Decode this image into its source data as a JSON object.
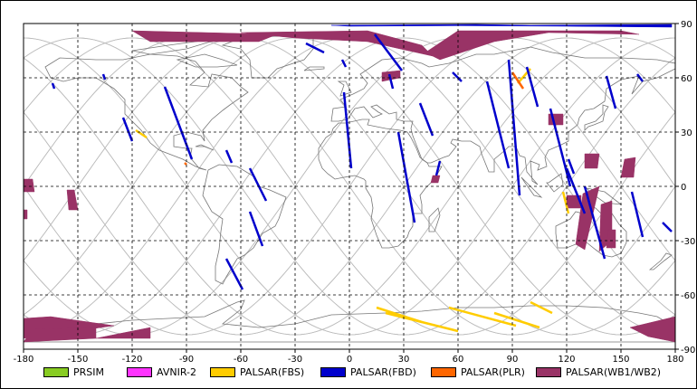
{
  "chart_data": {
    "type": "map",
    "projection": "equirectangular",
    "xlim": [
      -180,
      180
    ],
    "ylim": [
      -90,
      90
    ],
    "x_ticks": [
      "-180",
      "-150",
      "-120",
      "-90",
      "-60",
      "-30",
      "0",
      "30",
      "60",
      "90",
      "120",
      "150",
      "180"
    ],
    "y_ticks": [
      "90",
      "60",
      "30",
      "0",
      "-30",
      "-60",
      "-90"
    ],
    "grid": true,
    "legend_position": "bottom",
    "series": [
      {
        "name": "PRSIM",
        "color": "#88cc22"
      },
      {
        "name": "AVNIR-2",
        "color": "#ff33ff"
      },
      {
        "name": "PALSAR(FBS)",
        "color": "#ffcc00"
      },
      {
        "name": "PALSAR(FBD)",
        "color": "#0000cc"
      },
      {
        "name": "PALSAR(PLR)",
        "color": "#ff6600"
      },
      {
        "name": "PALSAR(WB1/WB2)",
        "color": "#993366"
      }
    ],
    "fbd_swaths": [
      [
        [
          -164,
          57
        ],
        [
          -163,
          54
        ]
      ],
      [
        [
          -136,
          62
        ],
        [
          -135,
          59
        ]
      ],
      [
        [
          -125,
          38
        ],
        [
          -120,
          25
        ]
      ],
      [
        [
          -102,
          55
        ],
        [
          -87,
          15
        ]
      ],
      [
        [
          -68,
          20
        ],
        [
          -65,
          13
        ]
      ],
      [
        [
          -55,
          10
        ],
        [
          -46,
          -8
        ]
      ],
      [
        [
          -55,
          -14
        ],
        [
          -48,
          -33
        ]
      ],
      [
        [
          -68,
          -40
        ],
        [
          -59,
          -57
        ]
      ],
      [
        [
          -24,
          79
        ],
        [
          -14,
          74
        ]
      ],
      [
        [
          -4,
          70
        ],
        [
          -2,
          66
        ]
      ],
      [
        [
          -3,
          52
        ],
        [
          1,
          10
        ]
      ],
      [
        [
          14,
          84
        ],
        [
          29,
          64
        ]
      ],
      [
        [
          22,
          62
        ],
        [
          24,
          54
        ]
      ],
      [
        [
          27,
          30
        ],
        [
          36,
          -20
        ]
      ],
      [
        [
          39,
          46
        ],
        [
          46,
          28
        ]
      ],
      [
        [
          50,
          14
        ],
        [
          48,
          6
        ]
      ],
      [
        [
          57,
          63
        ],
        [
          62,
          58
        ]
      ],
      [
        [
          76,
          58
        ],
        [
          88,
          10
        ]
      ],
      [
        [
          88,
          70
        ],
        [
          94,
          -5
        ]
      ],
      [
        [
          98,
          66
        ],
        [
          104,
          44
        ]
      ],
      [
        [
          111,
          43
        ],
        [
          122,
          0
        ]
      ],
      [
        [
          120,
          10
        ],
        [
          130,
          -15
        ]
      ],
      [
        [
          121,
          15
        ],
        [
          124,
          7
        ]
      ],
      [
        [
          130,
          0
        ],
        [
          141,
          -40
        ]
      ],
      [
        [
          142,
          61
        ],
        [
          147,
          43
        ]
      ],
      [
        [
          159,
          62
        ],
        [
          162,
          58
        ]
      ],
      [
        [
          156,
          -3
        ],
        [
          162,
          -28
        ]
      ],
      [
        [
          173,
          -20
        ],
        [
          178,
          -25
        ]
      ]
    ],
    "fbs_swaths": [
      [
        [
          -118,
          31
        ],
        [
          -112,
          27
        ]
      ],
      [
        [
          118,
          -3
        ],
        [
          121,
          -15
        ]
      ],
      [
        [
          93,
          57
        ],
        [
          100,
          65
        ]
      ],
      [
        [
          15,
          -67
        ],
        [
          40,
          -75
        ]
      ],
      [
        [
          20,
          -70
        ],
        [
          60,
          -80
        ]
      ],
      [
        [
          55,
          -67
        ],
        [
          92,
          -77
        ]
      ],
      [
        [
          80,
          -70
        ],
        [
          105,
          -78
        ]
      ],
      [
        [
          100,
          -64
        ],
        [
          112,
          -70
        ]
      ]
    ],
    "plr_swaths": [
      [
        [
          -91,
          13
        ],
        [
          -90,
          12
        ]
      ],
      [
        [
          90,
          63
        ],
        [
          96,
          54
        ]
      ]
    ],
    "wb_polygons": [
      [
        [
          -120,
          86
        ],
        [
          -40,
          84
        ],
        [
          -50,
          80
        ],
        [
          -110,
          80
        ]
      ],
      [
        [
          -60,
          85
        ],
        [
          10,
          86
        ],
        [
          40,
          78
        ],
        [
          46,
          72
        ],
        [
          10,
          80
        ],
        [
          -30,
          82
        ]
      ],
      [
        [
          42,
          74
        ],
        [
          60,
          86
        ],
        [
          150,
          86
        ],
        [
          160,
          84
        ],
        [
          110,
          85
        ],
        [
          80,
          80
        ],
        [
          50,
          70
        ]
      ],
      [
        [
          18,
          63
        ],
        [
          28,
          64
        ],
        [
          28,
          60
        ],
        [
          18,
          58
        ]
      ],
      [
        [
          -180,
          4
        ],
        [
          -175,
          4
        ],
        [
          -174,
          -3
        ],
        [
          -180,
          -3
        ]
      ],
      [
        [
          -180,
          -13
        ],
        [
          -178,
          -13
        ],
        [
          -178,
          -18
        ],
        [
          -180,
          -18
        ]
      ],
      [
        [
          -156,
          -2
        ],
        [
          -152,
          -2
        ],
        [
          -150,
          -13
        ],
        [
          -155,
          -13
        ]
      ],
      [
        [
          46,
          6
        ],
        [
          50,
          6
        ],
        [
          49,
          2
        ],
        [
          45,
          2
        ]
      ],
      [
        [
          110,
          40
        ],
        [
          118,
          40
        ],
        [
          118,
          34
        ],
        [
          110,
          34
        ]
      ],
      [
        [
          130,
          18
        ],
        [
          138,
          18
        ],
        [
          137,
          10
        ],
        [
          130,
          10
        ]
      ],
      [
        [
          152,
          15
        ],
        [
          158,
          16
        ],
        [
          157,
          5
        ],
        [
          150,
          5
        ]
      ],
      [
        [
          120,
          -5
        ],
        [
          128,
          -5
        ],
        [
          128,
          -12
        ],
        [
          120,
          -12
        ]
      ],
      [
        [
          129,
          -4
        ],
        [
          138,
          0
        ],
        [
          130,
          -35
        ],
        [
          125,
          -32
        ]
      ],
      [
        [
          139,
          -10
        ],
        [
          145,
          -8
        ],
        [
          145,
          -30
        ],
        [
          138,
          -36
        ]
      ],
      [
        [
          143,
          -24
        ],
        [
          147,
          -24
        ],
        [
          147,
          -34
        ],
        [
          142,
          -34
        ]
      ],
      [
        [
          -180,
          -73
        ],
        [
          -165,
          -72
        ],
        [
          -130,
          -77
        ],
        [
          -180,
          -84
        ]
      ],
      [
        [
          -175,
          -79
        ],
        [
          -140,
          -78
        ],
        [
          -140,
          -84
        ],
        [
          -180,
          -86
        ]
      ],
      [
        [
          -120,
          -80
        ],
        [
          -110,
          -78
        ],
        [
          -110,
          -84
        ],
        [
          -140,
          -84
        ]
      ],
      [
        [
          155,
          -78
        ],
        [
          180,
          -72
        ],
        [
          180,
          -86
        ],
        [
          165,
          -83
        ]
      ]
    ],
    "blue_arctic": [
      [
        [
          -10,
          89
        ],
        [
          70,
          89.5
        ],
        [
          100,
          89
        ],
        [
          178,
          89.5
        ],
        [
          178,
          88
        ],
        [
          120,
          88.5
        ],
        [
          60,
          88.8
        ],
        [
          0,
          88.5
        ]
      ]
    ]
  }
}
